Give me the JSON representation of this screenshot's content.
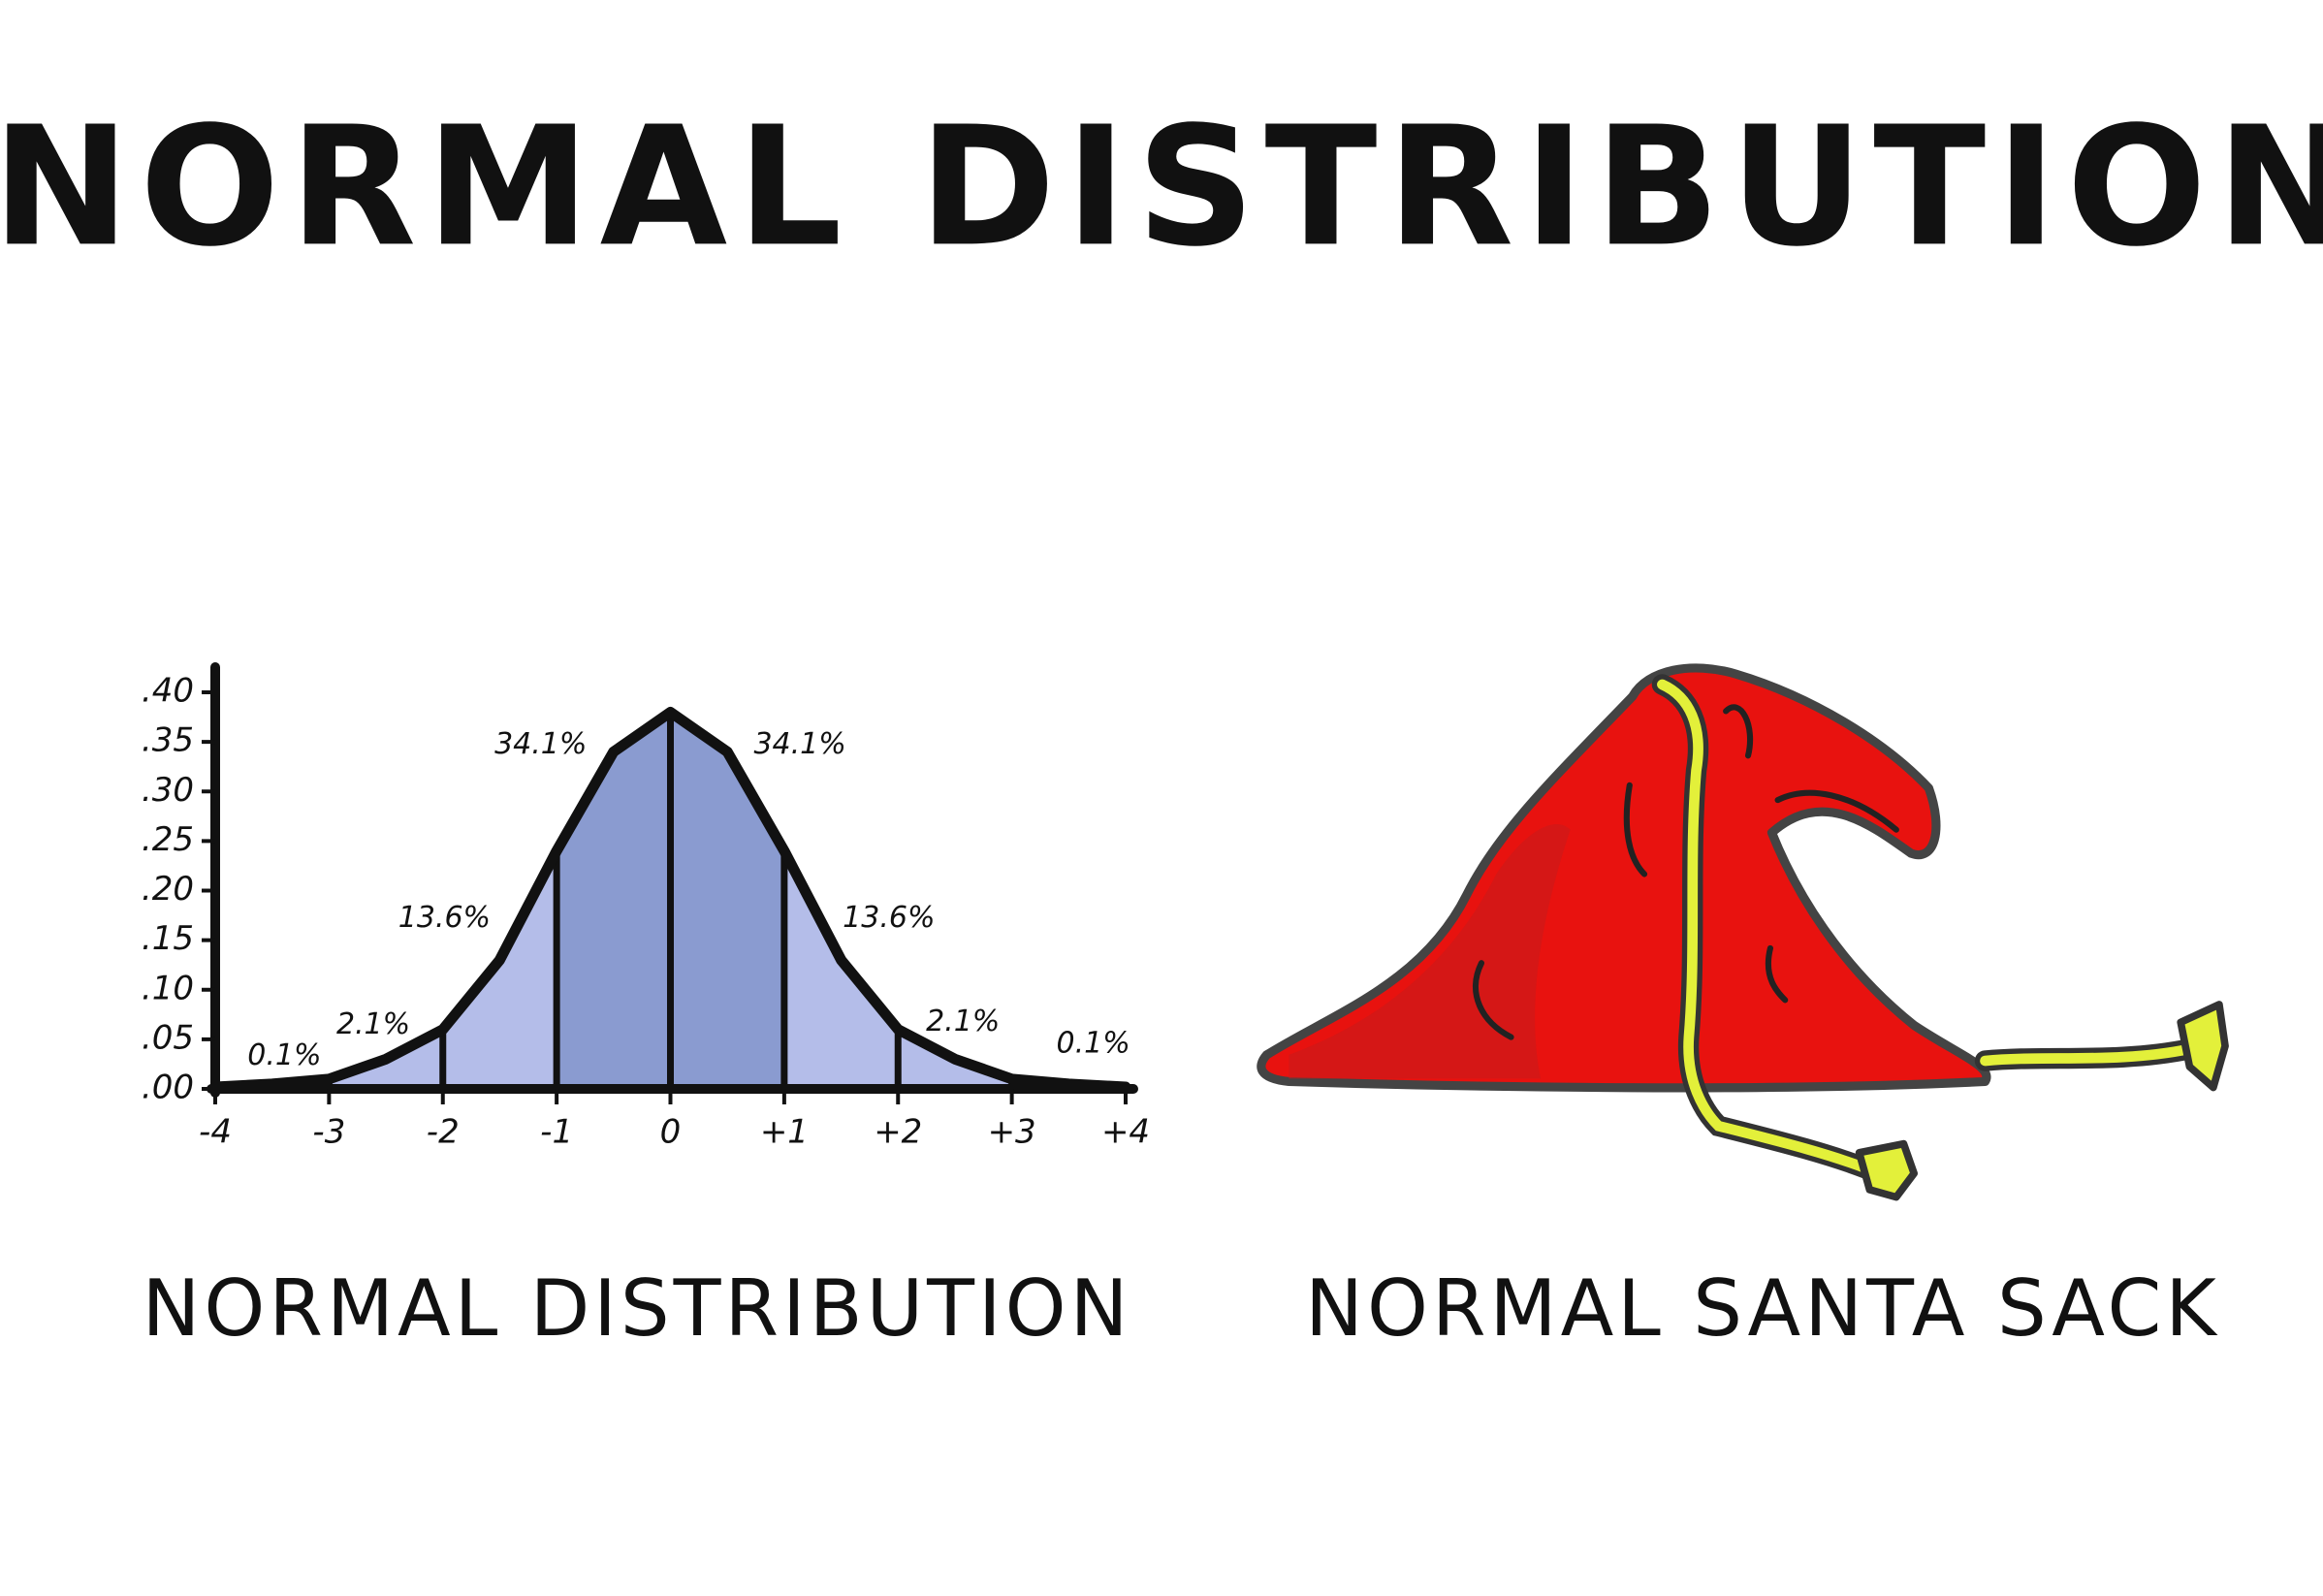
{
  "title": "NORMAL DISTRIBUTION",
  "chart_data": {
    "type": "area",
    "caption": "NORMAL DISTRIBUTION",
    "x": [
      -4,
      -3.5,
      -3,
      -2.5,
      -2,
      -1.5,
      -1,
      -0.5,
      0,
      0.5,
      1,
      1.5,
      2,
      2.5,
      3,
      3.5,
      4
    ],
    "values": [
      0.002,
      0.005,
      0.01,
      0.03,
      0.06,
      0.13,
      0.24,
      0.34,
      0.38,
      0.34,
      0.24,
      0.13,
      0.06,
      0.03,
      0.01,
      0.005,
      0.002
    ],
    "xlim": [
      -4,
      4
    ],
    "ylim": [
      0,
      0.4
    ],
    "xticks": [
      -4,
      -3,
      -2,
      -1,
      0,
      {
        "value": 1,
        "label": "+1"
      },
      {
        "value": 2,
        "label": "+2"
      },
      {
        "value": 3,
        "label": "+3"
      },
      {
        "value": 4,
        "label": "+4"
      }
    ],
    "yticks": [
      {
        "value": 0,
        "label": ".00"
      },
      {
        "value": 0.05,
        "label": ".05"
      },
      {
        "value": 0.1,
        "label": ".10"
      },
      {
        "value": 0.15,
        "label": ".15"
      },
      {
        "value": 0.2,
        "label": ".20"
      },
      {
        "value": 0.25,
        "label": ".25"
      },
      {
        "value": 0.3,
        "label": ".30"
      },
      {
        "value": 0.35,
        "label": ".35"
      },
      {
        "value": 0.4,
        "label": ".40"
      }
    ],
    "regions": {
      "values": [
        0.1,
        2.1,
        13.6,
        34.1,
        34.1,
        13.6,
        2.1,
        0.1
      ],
      "value_labels": [
        "0.1%",
        "2.1%",
        "13.6%",
        "34.1%",
        "34.1%",
        "13.6%",
        "2.1%",
        "0.1%"
      ]
    },
    "color": "#b4bde9",
    "inner_color": "#8a9bd0"
  },
  "sack_caption": "NORMAL SANTA SACK"
}
